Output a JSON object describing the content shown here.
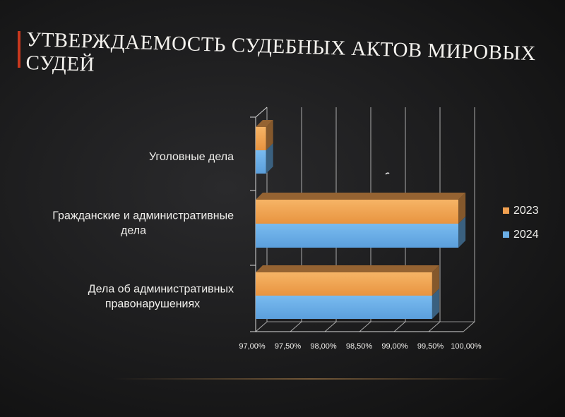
{
  "slide": {
    "title": "УТВЕРЖДАЕМОСТЬ СУДЕБНЫХ АКТОВ МИРОВЫХ СУДЕЙ"
  },
  "chart_data": {
    "type": "bar",
    "orientation": "horizontal",
    "title": "",
    "xlabel": "",
    "ylabel": "",
    "categories": [
      "Уголовные дела",
      "Гражданские и административные дела",
      "Дела об административных правонарушениях"
    ],
    "category_lines": [
      [
        "Уголовные дела"
      ],
      [
        "Гражданские и административные",
        "дела"
      ],
      [
        "Дела об административных",
        "правонарушениях"
      ]
    ],
    "series": [
      {
        "name": "2023",
        "values": [
          97.15,
          99.93,
          99.55
        ],
        "color": "#f0a050"
      },
      {
        "name": "2024",
        "values": [
          97.15,
          99.93,
          99.55
        ],
        "color": "#6aaee6"
      }
    ],
    "xlim": [
      97.0,
      100.0
    ],
    "x_ticks": [
      97.0,
      97.5,
      98.0,
      98.5,
      99.0,
      99.5,
      100.0
    ],
    "x_tick_labels": [
      "97,00%",
      "97,50%",
      "98,00%",
      "98,50%",
      "99,00%",
      "99,50%",
      "100,00%"
    ],
    "grid": true,
    "legend_position": "right",
    "style": "3d"
  }
}
